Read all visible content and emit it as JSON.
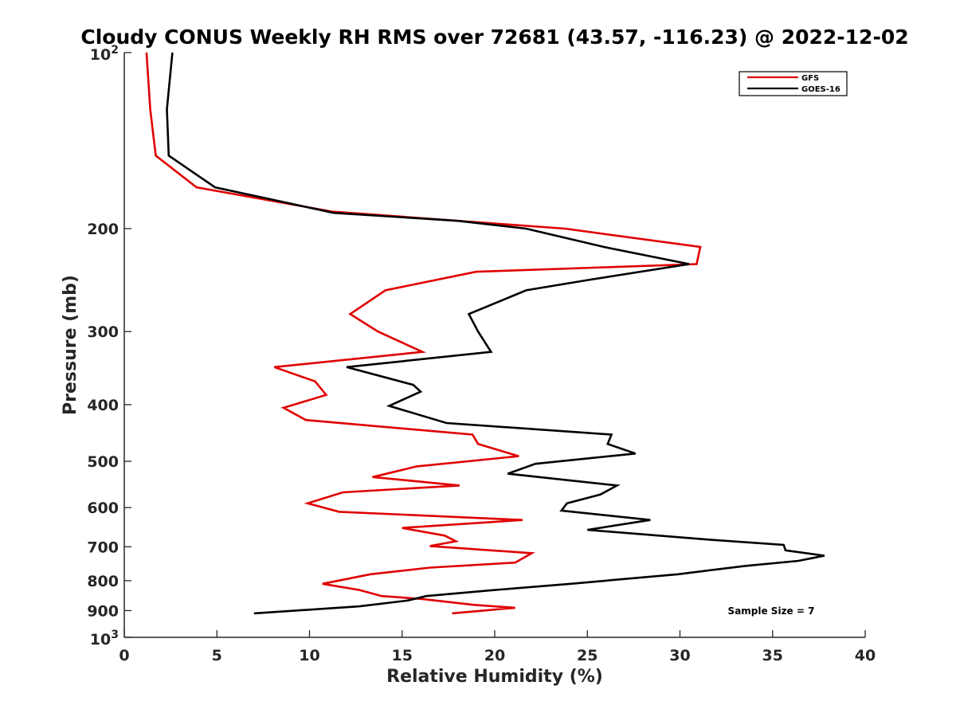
{
  "chart_data": {
    "type": "line",
    "title": "Cloudy CONUS Weekly RH RMS over 72681 (43.57, -116.23) @ 2022-12-02",
    "xlabel": "Relative Humidity (%)",
    "ylabel": "Pressure (mb)",
    "xlim": [
      0,
      40
    ],
    "ylim": [
      100,
      1000
    ],
    "y_scale": "log",
    "y_reversed": true,
    "x_ticks": [
      0,
      5,
      10,
      15,
      20,
      25,
      30,
      35,
      40
    ],
    "y_ticks": [
      {
        "value": 100,
        "base": "10",
        "exp": "2"
      },
      {
        "value": 200,
        "label": "200"
      },
      {
        "value": 300,
        "label": "300"
      },
      {
        "value": 400,
        "label": "400"
      },
      {
        "value": 500,
        "label": "500"
      },
      {
        "value": 600,
        "label": "600"
      },
      {
        "value": 700,
        "label": "700"
      },
      {
        "value": 800,
        "label": "800"
      },
      {
        "value": 900,
        "label": "900"
      },
      {
        "value": 1000,
        "base": "10",
        "exp": "3"
      }
    ],
    "grid": false,
    "legend_position": "top-right",
    "series": [
      {
        "name": "GFS",
        "color": "#e00000",
        "points": [
          [
            1.2,
            100
          ],
          [
            1.4,
            125
          ],
          [
            1.7,
            150
          ],
          [
            3.9,
            170
          ],
          [
            11.2,
            187
          ],
          [
            18.0,
            194
          ],
          [
            23.8,
            200
          ],
          [
            31.1,
            215
          ],
          [
            30.9,
            230
          ],
          [
            19.0,
            237
          ],
          [
            14.1,
            255
          ],
          [
            12.2,
            280
          ],
          [
            13.7,
            300
          ],
          [
            16.1,
            325
          ],
          [
            8.1,
            345
          ],
          [
            10.3,
            365
          ],
          [
            10.9,
            385
          ],
          [
            8.6,
            405
          ],
          [
            9.8,
            425
          ],
          [
            18.8,
            450
          ],
          [
            19.1,
            467
          ],
          [
            21.3,
            490
          ],
          [
            15.8,
            510
          ],
          [
            13.4,
            532
          ],
          [
            18.1,
            550
          ],
          [
            11.8,
            565
          ],
          [
            9.9,
            590
          ],
          [
            11.6,
            610
          ],
          [
            21.5,
            630
          ],
          [
            15.0,
            650
          ],
          [
            17.3,
            670
          ],
          [
            17.9,
            685
          ],
          [
            16.5,
            698
          ],
          [
            22.0,
            718
          ],
          [
            21.1,
            745
          ],
          [
            16.5,
            760
          ],
          [
            13.3,
            780
          ],
          [
            10.7,
            810
          ],
          [
            12.7,
            830
          ],
          [
            13.9,
            850
          ],
          [
            16.1,
            860
          ],
          [
            18.9,
            880
          ],
          [
            21.1,
            890
          ],
          [
            17.7,
            910
          ]
        ]
      },
      {
        "name": "GOES-16",
        "color": "#000000",
        "points": [
          [
            2.6,
            100
          ],
          [
            2.3,
            125
          ],
          [
            2.4,
            150
          ],
          [
            4.9,
            170
          ],
          [
            11.3,
            188
          ],
          [
            18.0,
            194
          ],
          [
            21.7,
            200
          ],
          [
            25.9,
            215
          ],
          [
            30.5,
            230
          ],
          [
            25.0,
            245
          ],
          [
            21.7,
            255
          ],
          [
            18.6,
            280
          ],
          [
            19.1,
            300
          ],
          [
            19.8,
            325
          ],
          [
            12.0,
            345
          ],
          [
            15.6,
            370
          ],
          [
            16.0,
            380
          ],
          [
            14.3,
            402
          ],
          [
            17.4,
            430
          ],
          [
            26.3,
            450
          ],
          [
            26.1,
            467
          ],
          [
            27.6,
            485
          ],
          [
            22.2,
            505
          ],
          [
            20.7,
            525
          ],
          [
            26.6,
            550
          ],
          [
            25.7,
            570
          ],
          [
            23.9,
            590
          ],
          [
            23.6,
            607
          ],
          [
            28.4,
            630
          ],
          [
            25.0,
            655
          ],
          [
            31.4,
            680
          ],
          [
            35.6,
            695
          ],
          [
            35.7,
            710
          ],
          [
            37.8,
            725
          ],
          [
            36.4,
            740
          ],
          [
            33.5,
            755
          ],
          [
            29.9,
            780
          ],
          [
            24.1,
            810
          ],
          [
            20.0,
            830
          ],
          [
            16.3,
            850
          ],
          [
            15.3,
            865
          ],
          [
            12.7,
            885
          ],
          [
            7.0,
            910
          ]
        ]
      }
    ],
    "annotations": [
      "Sample Size = 7"
    ]
  }
}
